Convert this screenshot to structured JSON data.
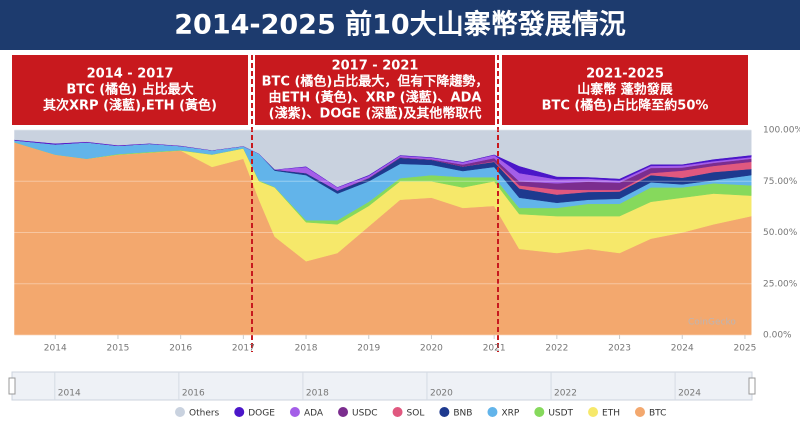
{
  "chart_data": {
    "type": "stacked_area",
    "title": "2014-2025 前10大山寨幣發展情況",
    "annotations": [
      [
        "2014 - 2017",
        "BTC (橘色) 占比最大",
        "其次XRP (淺藍),ETH (黃色)"
      ],
      [
        "2017 - 2021",
        "BTC (橘色)占比最大，但有下降趨勢，",
        "由ETH (黃色)、XRP (淺藍)、ADA",
        "(淺紫)、DOGE (深藍)及其他幣取代"
      ],
      [
        "2021-2025",
        "山寨幣 蓬勃發展",
        "BTC (橘色)占比降至約50%"
      ]
    ],
    "watermark": "CoinGecko",
    "x": [
      2013.35,
      2014.0,
      2014.5,
      2015.0,
      2015.5,
      2016.0,
      2016.5,
      2017.0,
      2017.25,
      2017.5,
      2018.0,
      2018.5,
      2019.0,
      2019.5,
      2020.0,
      2020.5,
      2021.0,
      2021.4,
      2022.0,
      2022.5,
      2023.0,
      2023.5,
      2024.0,
      2024.5,
      2025.1
    ],
    "xlim": [
      2013.31,
      2025.24
    ],
    "xticks": [
      2014,
      2015,
      2016,
      2017,
      2018,
      2019,
      2020,
      2021,
      2022,
      2023,
      2024,
      2025
    ],
    "navigator_xticks": [
      2014,
      2016,
      2018,
      2020,
      2022,
      2024
    ],
    "ylim": [
      0,
      100
    ],
    "yticks": [
      {
        "value": 0,
        "label": "0.00%"
      },
      {
        "value": 25,
        "label": "25.00%"
      },
      {
        "value": 50,
        "label": "50.00%"
      },
      {
        "value": 75,
        "label": "75.00%"
      },
      {
        "value": 100,
        "label": "100.00%"
      }
    ],
    "series": [
      {
        "name": "Others",
        "color": "#c9d2df",
        "values": [
          4.7,
          6.5,
          5.7,
          7.4,
          6.5,
          7.6,
          9.8,
          7.8,
          11.5,
          19.2,
          17.7,
          27.8,
          21.9,
          12.2,
          13.2,
          15.5,
          11.9,
          17.5,
          22.7,
          22.9,
          23.7,
          16.7,
          16.7,
          14.2,
          12.2
        ]
      },
      {
        "name": "DOGE",
        "color": "#4b16c9",
        "values": [
          0.3,
          0.5,
          0.3,
          0.3,
          0.2,
          0.2,
          0.1,
          0.1,
          0.1,
          0.1,
          0.3,
          0.2,
          0.4,
          0.3,
          0.3,
          0.3,
          0.3,
          3.5,
          1.3,
          0.8,
          1,
          0.8,
          0.6,
          1,
          1
        ]
      },
      {
        "name": "ADA",
        "color": "#a45ee8",
        "values": [
          0,
          0,
          0,
          0,
          0,
          0,
          0,
          0,
          0,
          0,
          3,
          1.5,
          1,
          0.8,
          0.8,
          1,
          1.5,
          4,
          2,
          1.5,
          1,
          1,
          1,
          0.8,
          0.8
        ]
      },
      {
        "name": "USDC",
        "color": "#7b2d8e",
        "values": [
          0,
          0,
          0,
          0,
          0,
          0,
          0,
          0,
          0,
          0,
          0,
          0,
          0.2,
          0.2,
          0.2,
          1,
          1.5,
          2,
          3,
          4,
          3.5,
          2.5,
          1.5,
          1.5,
          1.5
        ]
      },
      {
        "name": "SOL",
        "color": "#e0587f",
        "values": [
          0,
          0,
          0,
          0,
          0,
          0,
          0,
          0,
          0,
          0,
          0,
          0,
          0,
          0,
          0,
          0,
          0.3,
          1.5,
          2.5,
          1,
          0.8,
          1,
          3.5,
          3,
          3.5
        ]
      },
      {
        "name": "BNB",
        "color": "#1e3a8f",
        "values": [
          0,
          0,
          0,
          0,
          0,
          0,
          0,
          0,
          0,
          0.5,
          1,
          1.5,
          1.5,
          3,
          2.5,
          2.2,
          2.5,
          4.5,
          4,
          3.8,
          3.5,
          3.5,
          3.2,
          4,
          3
        ]
      },
      {
        "name": "XRP",
        "color": "#62b4ea",
        "values": [
          1,
          5,
          8,
          4,
          4,
          2,
          2,
          1,
          13,
          8,
          22,
          13,
          10,
          7,
          5,
          3,
          5,
          5,
          2.5,
          2,
          2.5,
          2.5,
          1.5,
          1.5,
          5
        ]
      },
      {
        "name": "USDT",
        "color": "#86d95c",
        "values": [
          0,
          0,
          0,
          0.3,
          0.3,
          0.2,
          0.1,
          0.1,
          0.4,
          0.2,
          1,
          2,
          2,
          1.5,
          3,
          5,
          2,
          3,
          4,
          6,
          6,
          7,
          5,
          5,
          5
        ]
      },
      {
        "name": "ETH",
        "color": "#f6e86a",
        "values": [
          0,
          0,
          0,
          0,
          0,
          0,
          6,
          5,
          9,
          24,
          19,
          14,
          10,
          9,
          8,
          10,
          12,
          17,
          18,
          16,
          18,
          18,
          17,
          15,
          10
        ]
      },
      {
        "name": "BTC",
        "color": "#f3a86e",
        "values": [
          94,
          88,
          86,
          88,
          89,
          90,
          82,
          86,
          66,
          48,
          36,
          40,
          53,
          66,
          67,
          62,
          63,
          42,
          40,
          42,
          40,
          47,
          50,
          54,
          58
        ]
      }
    ]
  }
}
